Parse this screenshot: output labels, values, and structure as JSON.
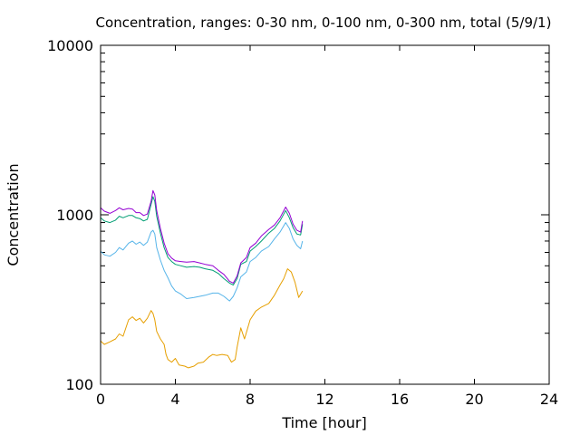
{
  "chart_data": {
    "type": "line",
    "title": "Concentration, ranges: 0-30 nm, 0-100 nm, 0-300 nm, total (5/9/1)",
    "xlabel": "Time [hour]",
    "ylabel": "Concentration",
    "xlim": [
      0,
      24
    ],
    "ylim": [
      100,
      10000
    ],
    "yscale": "log",
    "xticks": [
      "0",
      "4",
      "8",
      "12",
      "16",
      "20",
      "24"
    ],
    "yticks": [
      "100",
      "1000",
      "10000"
    ],
    "grid": false,
    "legend": "none",
    "series": [
      {
        "color": "#e69f00",
        "x": [
          0,
          0.2,
          0.5,
          0.8,
          1.0,
          1.2,
          1.5,
          1.7,
          1.9,
          2.1,
          2.3,
          2.5,
          2.7,
          2.8,
          2.9,
          3.0,
          3.2,
          3.4,
          3.5,
          3.6,
          3.8,
          4.0,
          4.2,
          4.5,
          4.7,
          5.0,
          5.2,
          5.5,
          5.8,
          6.0,
          6.2,
          6.5,
          6.8,
          7.0,
          7.2,
          7.3,
          7.5,
          7.7,
          8.0,
          8.3,
          8.6,
          9.0,
          9.3,
          9.6,
          9.8,
          10.0,
          10.2,
          10.4,
          10.6,
          10.8
        ],
        "y": [
          180,
          172,
          178,
          185,
          198,
          192,
          240,
          250,
          238,
          245,
          230,
          245,
          272,
          262,
          240,
          205,
          185,
          172,
          150,
          140,
          135,
          142,
          130,
          128,
          125,
          128,
          133,
          135,
          145,
          150,
          148,
          150,
          148,
          135,
          140,
          165,
          215,
          185,
          240,
          270,
          285,
          300,
          335,
          385,
          420,
          480,
          460,
          400,
          325,
          355
        ]
      },
      {
        "color": "#56b4e9",
        "x": [
          0,
          0.2,
          0.5,
          0.8,
          1.0,
          1.2,
          1.5,
          1.7,
          1.9,
          2.1,
          2.3,
          2.5,
          2.7,
          2.8,
          2.9,
          3.0,
          3.2,
          3.4,
          3.6,
          3.8,
          4.0,
          4.3,
          4.6,
          5.0,
          5.3,
          5.6,
          6.0,
          6.3,
          6.6,
          6.9,
          7.1,
          7.3,
          7.5,
          7.8,
          8.0,
          8.3,
          8.6,
          9.0,
          9.3,
          9.6,
          9.9,
          10.1,
          10.3,
          10.5,
          10.7,
          10.8
        ],
        "y": [
          610,
          580,
          570,
          600,
          640,
          620,
          680,
          700,
          670,
          690,
          660,
          690,
          790,
          810,
          770,
          640,
          540,
          470,
          425,
          380,
          355,
          340,
          320,
          325,
          330,
          335,
          345,
          345,
          330,
          310,
          330,
          370,
          430,
          460,
          530,
          560,
          610,
          650,
          720,
          790,
          900,
          830,
          720,
          660,
          630,
          700
        ]
      },
      {
        "color": "#009e73",
        "x": [
          0,
          0.2,
          0.5,
          0.8,
          1.0,
          1.2,
          1.5,
          1.7,
          1.9,
          2.1,
          2.3,
          2.5,
          2.7,
          2.8,
          2.9,
          3.0,
          3.2,
          3.4,
          3.6,
          3.8,
          4.0,
          4.3,
          4.6,
          5.0,
          5.3,
          5.6,
          6.0,
          6.3,
          6.6,
          6.9,
          7.1,
          7.3,
          7.5,
          7.8,
          8.0,
          8.3,
          8.6,
          9.0,
          9.3,
          9.6,
          9.9,
          10.1,
          10.3,
          10.5,
          10.7,
          10.8
        ],
        "y": [
          960,
          920,
          900,
          930,
          980,
          960,
          990,
          990,
          960,
          950,
          920,
          940,
          1150,
          1280,
          1200,
          980,
          780,
          640,
          560,
          530,
          510,
          500,
          490,
          495,
          490,
          480,
          470,
          450,
          420,
          395,
          385,
          420,
          510,
          530,
          610,
          650,
          700,
          780,
          830,
          920,
          1060,
          960,
          840,
          770,
          760,
          880
        ]
      },
      {
        "color": "#9400d3",
        "x": [
          0,
          0.2,
          0.5,
          0.8,
          1.0,
          1.2,
          1.5,
          1.7,
          1.9,
          2.1,
          2.3,
          2.5,
          2.7,
          2.8,
          2.9,
          3.0,
          3.2,
          3.4,
          3.6,
          3.8,
          4.0,
          4.3,
          4.6,
          5.0,
          5.3,
          5.6,
          6.0,
          6.3,
          6.6,
          6.9,
          7.1,
          7.3,
          7.5,
          7.8,
          8.0,
          8.3,
          8.6,
          9.0,
          9.3,
          9.6,
          9.9,
          10.1,
          10.3,
          10.5,
          10.7,
          10.8
        ],
        "y": [
          1100,
          1050,
          1020,
          1060,
          1100,
          1070,
          1090,
          1080,
          1030,
          1030,
          990,
          1010,
          1200,
          1390,
          1310,
          1060,
          830,
          680,
          590,
          555,
          535,
          530,
          525,
          530,
          520,
          510,
          500,
          470,
          445,
          405,
          395,
          435,
          520,
          560,
          640,
          680,
          750,
          820,
          870,
          960,
          1110,
          1020,
          880,
          810,
          790,
          920
        ]
      }
    ]
  }
}
